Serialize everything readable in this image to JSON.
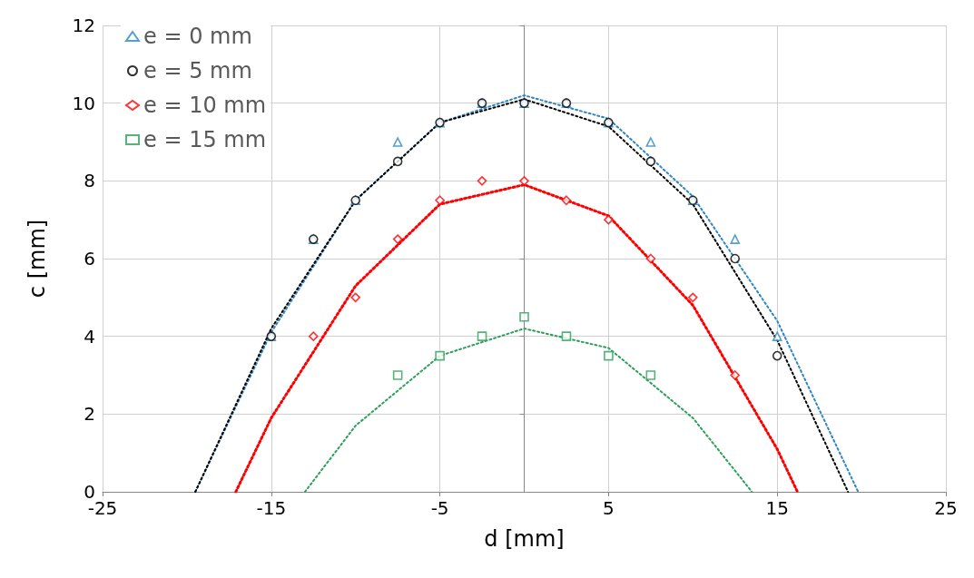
{
  "chart_data": {
    "type": "scatter",
    "xlabel": "d [mm]",
    "ylabel": "c [mm]",
    "xlim": [
      -25,
      25
    ],
    "xticks": [
      -25,
      -15,
      -5,
      5,
      15,
      25
    ],
    "ylim": [
      0,
      12
    ],
    "yticks": [
      0,
      2,
      4,
      6,
      8,
      10,
      12
    ],
    "grid": true,
    "legend": "top left",
    "series": [
      {
        "name": "e = 0 mm",
        "color": "#2e86c1",
        "marker": "triangle",
        "x": [
          -15,
          -12.5,
          -10,
          -7.5,
          -5,
          -2.5,
          0,
          2.5,
          5,
          7.5,
          10,
          12.5,
          15
        ],
        "values": [
          4,
          6.5,
          7.5,
          9,
          9.5,
          10,
          10,
          10,
          9.5,
          9,
          7.5,
          6.5,
          4
        ]
      },
      {
        "name": "e = 5 mm",
        "color": "#000000",
        "marker": "circle",
        "x": [
          -15,
          -12.5,
          -10,
          -7.5,
          -5,
          -2.5,
          0,
          2.5,
          5,
          7.5,
          10,
          12.5,
          15
        ],
        "values": [
          4,
          6.5,
          7.5,
          8.5,
          9.5,
          10,
          10,
          10,
          9.5,
          8.5,
          7.5,
          6,
          3.5
        ]
      },
      {
        "name": "e = 10 mm",
        "color": "#ff0000",
        "marker": "diamond",
        "x": [
          -12.5,
          -10,
          -7.5,
          -5,
          -2.5,
          0,
          2.5,
          5,
          7.5,
          10,
          12.5
        ],
        "values": [
          4,
          5,
          6.5,
          7.5,
          8,
          8,
          7.5,
          7,
          6,
          5,
          3
        ]
      },
      {
        "name": "e = 15 mm",
        "color": "#2ca05a",
        "marker": "square",
        "x": [
          -7.5,
          -5,
          -2.5,
          0,
          2.5,
          5,
          7.5
        ],
        "values": [
          3,
          3.5,
          4,
          4.5,
          4,
          3.5,
          3
        ]
      },
      {
        "type": "line",
        "color": "#2e86c1",
        "marker": "none",
        "line_style": "dotted",
        "x": [
          -19.5,
          -15,
          -10,
          -5,
          0,
          5,
          10,
          15,
          19.8
        ],
        "values": [
          0,
          4.1,
          7.5,
          9.5,
          10.2,
          9.6,
          7.6,
          4.4,
          0
        ]
      },
      {
        "type": "line",
        "color": "#000000",
        "marker": "none",
        "line_style": "dotted",
        "x": [
          -19.5,
          -15,
          -10,
          -5,
          0,
          5,
          10,
          15,
          19.2
        ],
        "values": [
          0,
          4.2,
          7.5,
          9.5,
          10.1,
          9.4,
          7.4,
          3.9,
          0
        ]
      },
      {
        "type": "line",
        "color": "#ff0000",
        "marker": "none",
        "line_style": "dotted",
        "x": [
          -17.1,
          -15,
          -10,
          -5,
          0,
          5,
          10,
          15,
          16.2
        ],
        "values": [
          0,
          1.9,
          5.3,
          7.4,
          7.9,
          7.1,
          4.8,
          1.1,
          0
        ]
      },
      {
        "type": "line",
        "color": "#2ca05a",
        "marker": "none",
        "line_style": "dotted",
        "x": [
          -13,
          -10,
          -5,
          0,
          5,
          10,
          13.5
        ],
        "values": [
          0,
          1.7,
          3.5,
          4.2,
          3.7,
          1.9,
          0
        ]
      }
    ]
  }
}
